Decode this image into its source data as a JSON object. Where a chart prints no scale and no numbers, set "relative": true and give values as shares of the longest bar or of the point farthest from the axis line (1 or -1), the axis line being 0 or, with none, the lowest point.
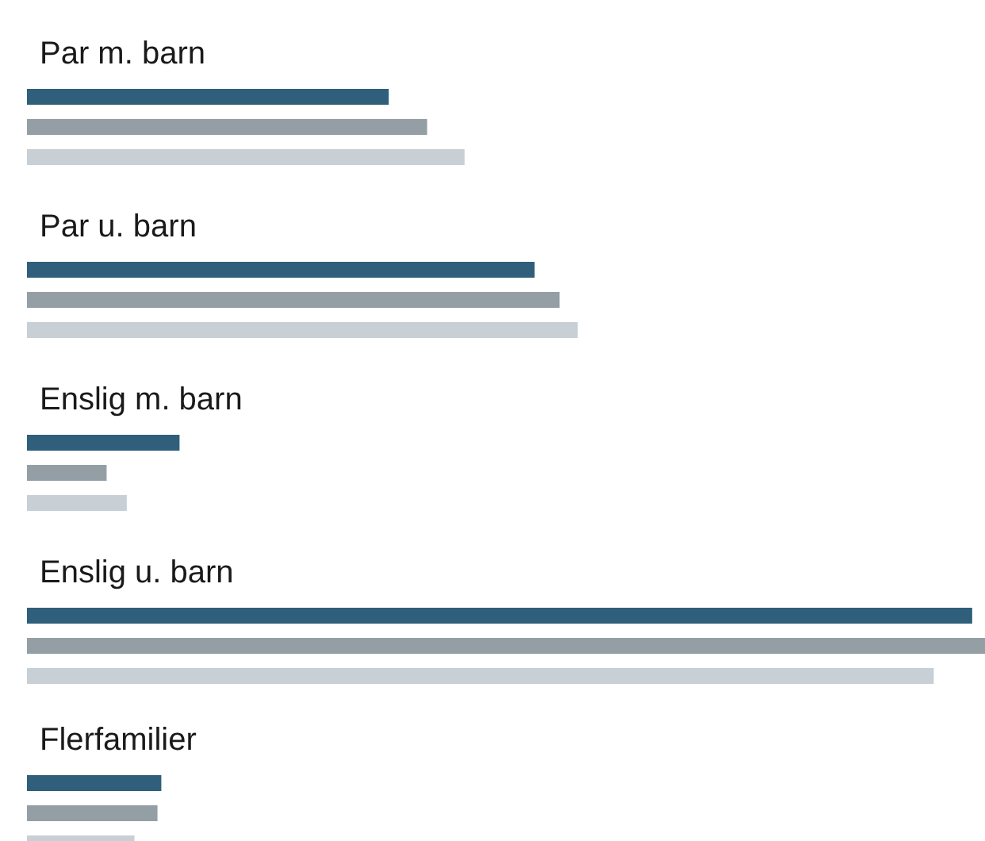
{
  "chart_data": {
    "type": "bar",
    "orientation": "horizontal",
    "relative": true,
    "categories": [
      "Par m. barn",
      "Par u. barn",
      "Enslig m. barn",
      "Enslig u. barn",
      "Flerfamilier"
    ],
    "series": [
      {
        "color": "#2f5f7a",
        "values": [
          0.377,
          0.529,
          0.159,
          0.985,
          0.14
        ]
      },
      {
        "color": "#949fa5",
        "values": [
          0.417,
          0.555,
          0.083,
          1,
          0.136
        ]
      },
      {
        "color": "#c8d0d5",
        "values": [
          0.456,
          0.574,
          0.104,
          0.945,
          0.112
        ]
      }
    ]
  }
}
